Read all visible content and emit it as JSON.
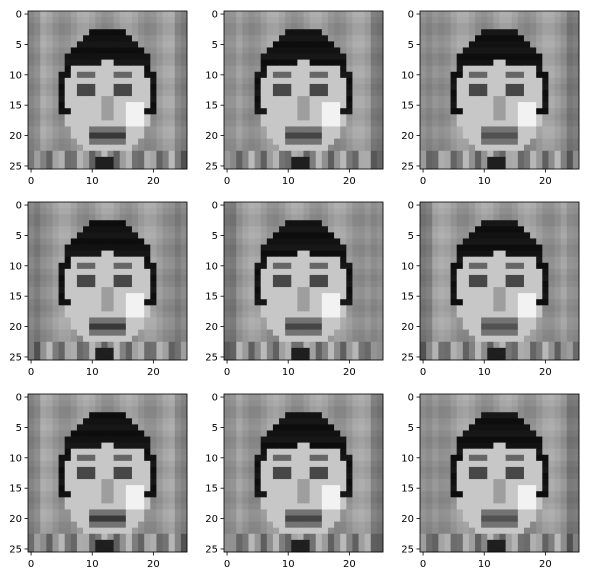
{
  "chart_data": [
    {
      "type": "heatmap",
      "title": "",
      "xlabel": "",
      "ylabel": "",
      "colormap": "gray",
      "pixel_rows": 26,
      "pixel_cols": 26,
      "xlim": [
        -0.5,
        25.5
      ],
      "ylim": [
        25.5,
        -0.5
      ],
      "xticks": [
        0,
        10,
        20
      ],
      "yticks": [
        0,
        5,
        10,
        15,
        20,
        25
      ],
      "grid": false
    },
    {
      "type": "heatmap",
      "title": "",
      "xlabel": "",
      "ylabel": "",
      "colormap": "gray",
      "pixel_rows": 26,
      "pixel_cols": 26,
      "xlim": [
        -0.5,
        25.5
      ],
      "ylim": [
        25.5,
        -0.5
      ],
      "xticks": [
        0,
        10,
        20
      ],
      "yticks": [
        0,
        5,
        10,
        15,
        20,
        25
      ],
      "grid": false
    },
    {
      "type": "heatmap",
      "title": "",
      "xlabel": "",
      "ylabel": "",
      "colormap": "gray",
      "pixel_rows": 26,
      "pixel_cols": 26,
      "xlim": [
        -0.5,
        25.5
      ],
      "ylim": [
        25.5,
        -0.5
      ],
      "xticks": [
        0,
        10,
        20
      ],
      "yticks": [
        0,
        5,
        10,
        15,
        20,
        25
      ],
      "grid": false
    },
    {
      "type": "heatmap",
      "title": "",
      "xlabel": "",
      "ylabel": "",
      "colormap": "gray",
      "pixel_rows": 26,
      "pixel_cols": 26,
      "xlim": [
        -0.5,
        25.5
      ],
      "ylim": [
        25.5,
        -0.5
      ],
      "xticks": [
        0,
        10,
        20
      ],
      "yticks": [
        0,
        5,
        10,
        15,
        20,
        25
      ],
      "grid": false
    },
    {
      "type": "heatmap",
      "title": "",
      "xlabel": "",
      "ylabel": "",
      "colormap": "gray",
      "pixel_rows": 26,
      "pixel_cols": 26,
      "xlim": [
        -0.5,
        25.5
      ],
      "ylim": [
        25.5,
        -0.5
      ],
      "xticks": [
        0,
        10,
        20
      ],
      "yticks": [
        0,
        5,
        10,
        15,
        20,
        25
      ],
      "grid": false
    },
    {
      "type": "heatmap",
      "title": "",
      "xlabel": "",
      "ylabel": "",
      "colormap": "gray",
      "pixel_rows": 26,
      "pixel_cols": 26,
      "xlim": [
        -0.5,
        25.5
      ],
      "ylim": [
        25.5,
        -0.5
      ],
      "xticks": [
        0,
        10,
        20
      ],
      "yticks": [
        0,
        5,
        10,
        15,
        20,
        25
      ],
      "grid": false
    },
    {
      "type": "heatmap",
      "title": "",
      "xlabel": "",
      "ylabel": "",
      "colormap": "gray",
      "pixel_rows": 26,
      "pixel_cols": 26,
      "xlim": [
        -0.5,
        25.5
      ],
      "ylim": [
        25.5,
        -0.5
      ],
      "xticks": [
        0,
        10,
        20
      ],
      "yticks": [
        0,
        5,
        10,
        15,
        20,
        25
      ],
      "grid": false
    },
    {
      "type": "heatmap",
      "title": "",
      "xlabel": "",
      "ylabel": "",
      "colormap": "gray",
      "pixel_rows": 26,
      "pixel_cols": 26,
      "xlim": [
        -0.5,
        25.5
      ],
      "ylim": [
        25.5,
        -0.5
      ],
      "xticks": [
        0,
        10,
        20
      ],
      "yticks": [
        0,
        5,
        10,
        15,
        20,
        25
      ],
      "grid": false
    },
    {
      "type": "heatmap",
      "title": "",
      "xlabel": "",
      "ylabel": "",
      "colormap": "gray",
      "pixel_rows": 26,
      "pixel_cols": 26,
      "xlim": [
        -0.5,
        25.5
      ],
      "ylim": [
        25.5,
        -0.5
      ],
      "xticks": [
        0,
        10,
        20
      ],
      "yticks": [
        0,
        5,
        10,
        15,
        20,
        25
      ],
      "grid": false
    }
  ]
}
